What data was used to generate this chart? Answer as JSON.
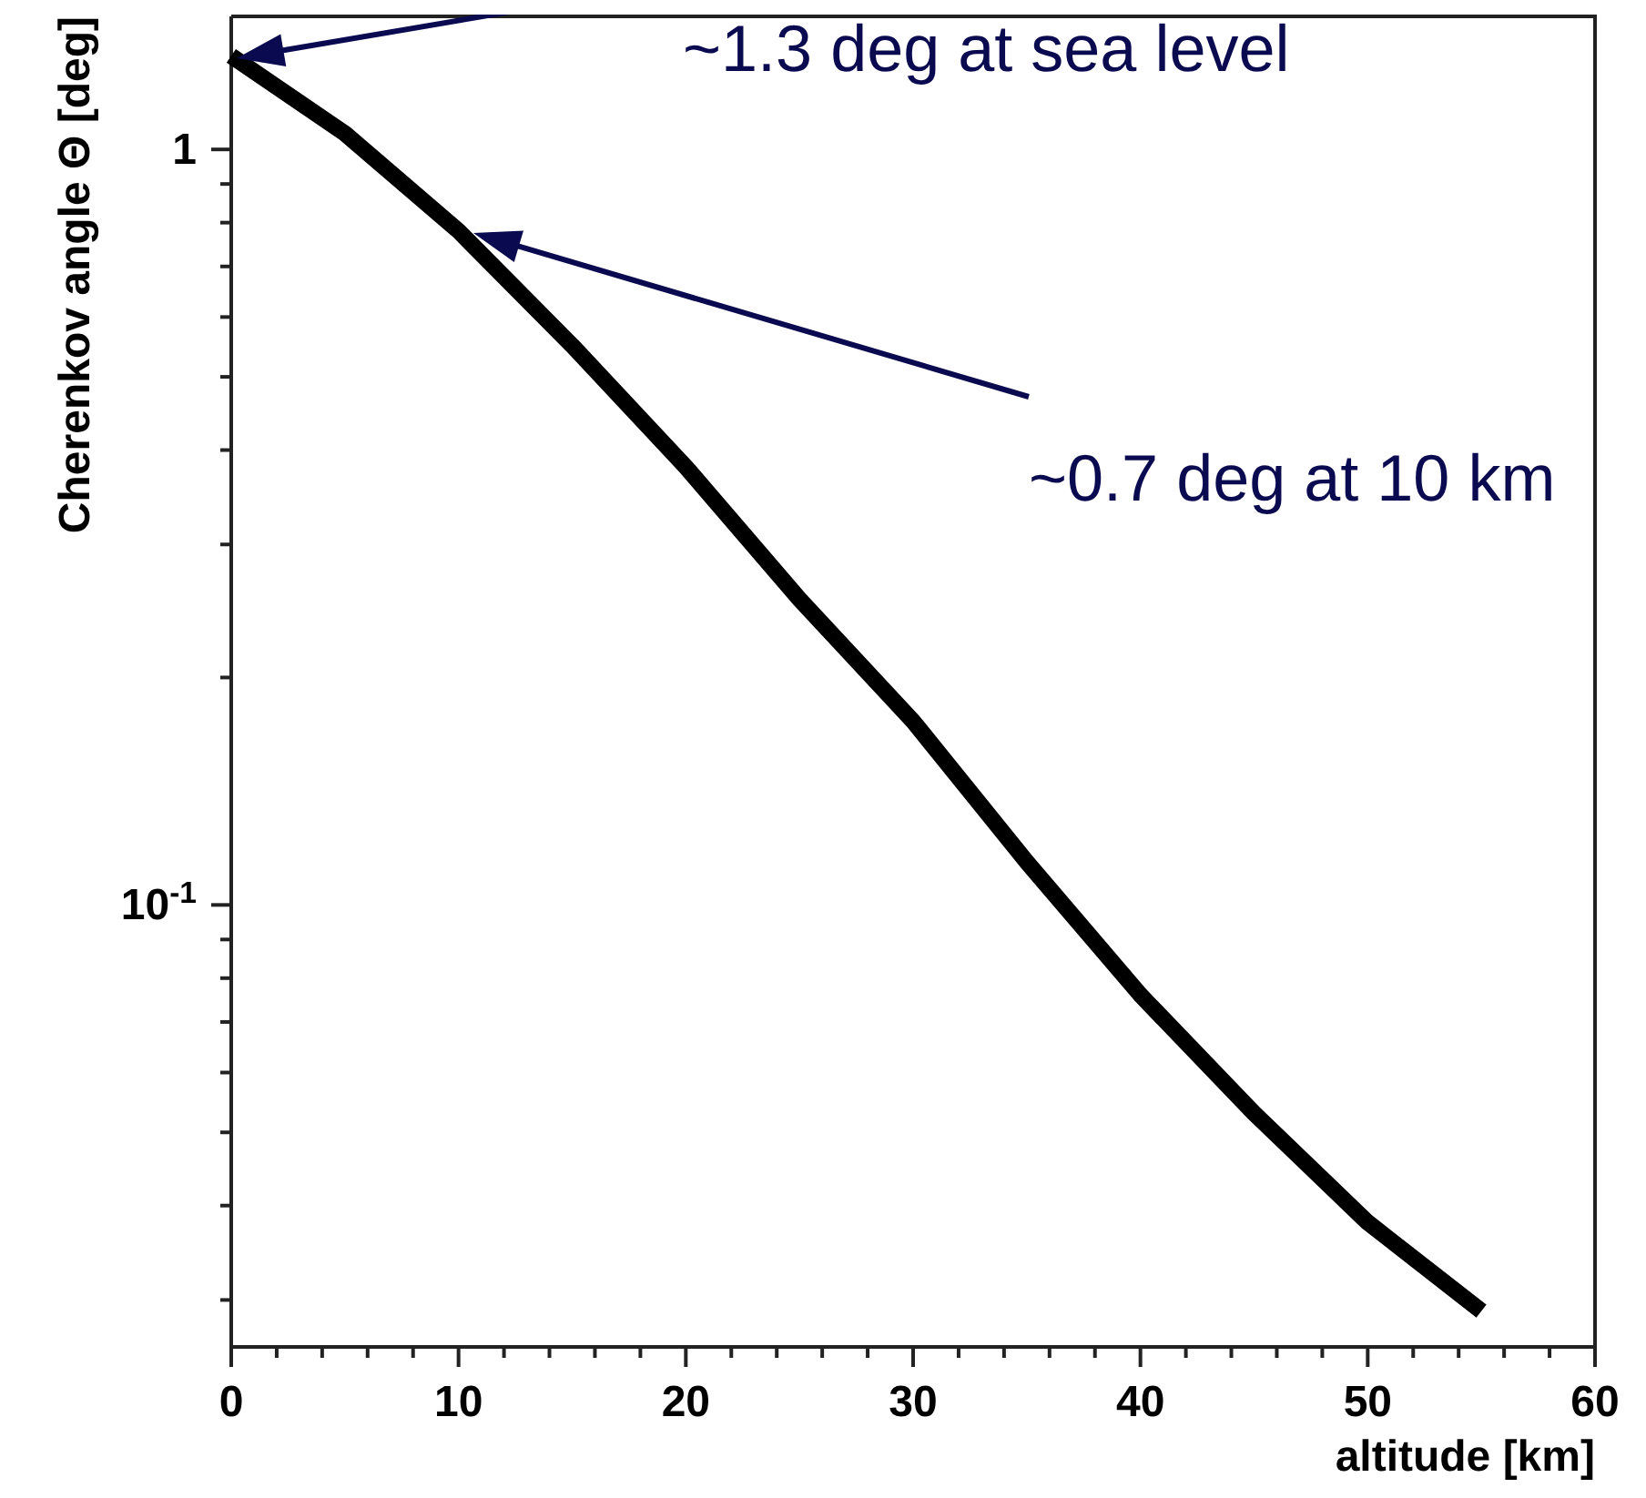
{
  "chart_data": {
    "type": "line",
    "xlabel": "altitude [km]",
    "ylabel": "Cherenkov angle Θ [deg]",
    "log": "y",
    "xlim": [
      0,
      60
    ],
    "xticks": [
      0,
      {
        "value": 2,
        "label": null
      },
      {
        "value": 4,
        "label": null
      },
      {
        "value": 6,
        "label": null
      },
      {
        "value": 8,
        "label": null
      },
      10,
      {
        "value": 12,
        "label": null
      },
      {
        "value": 14,
        "label": null
      },
      {
        "value": 16,
        "label": null
      },
      {
        "value": 18,
        "label": null
      },
      20,
      {
        "value": 22,
        "label": null
      },
      {
        "value": 24,
        "label": null
      },
      {
        "value": 26,
        "label": null
      },
      {
        "value": 28,
        "label": null
      },
      30,
      {
        "value": 32,
        "label": null
      },
      {
        "value": 34,
        "label": null
      },
      {
        "value": 36,
        "label": null
      },
      {
        "value": 38,
        "label": null
      },
      40,
      {
        "value": 42,
        "label": null
      },
      {
        "value": 44,
        "label": null
      },
      {
        "value": 46,
        "label": null
      },
      {
        "value": 48,
        "label": null
      },
      50,
      {
        "value": 52,
        "label": null
      },
      {
        "value": 54,
        "label": null
      },
      {
        "value": 56,
        "label": null
      },
      {
        "value": 58,
        "label": null
      },
      60
    ],
    "ylim": [
      0.026,
      1.5
    ],
    "yticks": [
      {
        "value": 0.03,
        "label": null
      },
      {
        "value": 0.04,
        "label": null
      },
      {
        "value": 0.05,
        "label": null
      },
      {
        "value": 0.06,
        "label": null
      },
      {
        "value": 0.07,
        "label": null
      },
      {
        "value": 0.08,
        "label": null
      },
      {
        "value": 0.09,
        "label": null
      },
      {
        "value": 0.1,
        "label": "10$^{-1}$"
      },
      {
        "value": 0.2,
        "label": null
      },
      {
        "value": 0.3,
        "label": null
      },
      {
        "value": 0.4,
        "label": null
      },
      {
        "value": 0.5,
        "label": null
      },
      {
        "value": 0.6,
        "label": null
      },
      {
        "value": 0.7,
        "label": null
      },
      {
        "value": 0.8,
        "label": null
      },
      {
        "value": 0.9,
        "label": null
      },
      1
    ],
    "x": [
      0,
      5,
      10,
      15,
      20,
      25,
      30,
      35,
      40,
      45,
      50,
      55
    ],
    "series": [
      {
        "color": "#000000",
        "values": [
          1.33,
          1.05,
          0.78,
          0.55,
          0.38,
          0.254,
          0.175,
          0.114,
          0.076,
          0.053,
          0.038,
          0.029
        ]
      }
    ],
    "grid": false,
    "marker": "none",
    "line_style": "solid",
    "annotations": [
      "~1.3 deg at sea level",
      "~0.7 deg at 10 km"
    ]
  }
}
